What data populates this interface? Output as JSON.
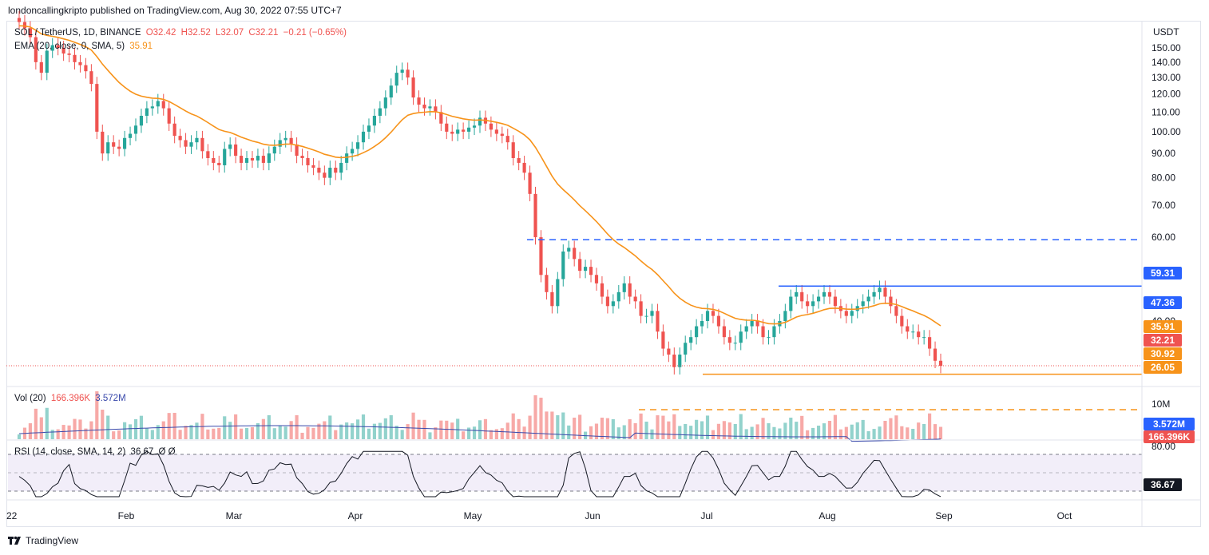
{
  "header": {
    "published": "londoncallingkripto published on TradingView.com, Aug 30, 2022 07:55 UTC+7"
  },
  "legend": {
    "symbol": "SOL / TetherUS, 1D, BINANCE",
    "open": "O32.42",
    "high": "H32.52",
    "low": "L32.07",
    "close": "C32.21",
    "change": "−0.21 (−0.65%)",
    "ema_label": "EMA (20, close, 0, SMA, 5)",
    "ema_value": "35.91",
    "vol_label": "Vol (20)",
    "vol_value": "166.396K",
    "vol_ma_value": "3.572M",
    "rsi_label": "RSI (14, close, SMA, 14, 2)",
    "rsi_value": "36.67",
    "rsi_extra": "Ø  Ø"
  },
  "price_axis": {
    "currency": "USDT",
    "ticks": [
      "150.00",
      "140.00",
      "130.00",
      "120.00",
      "110.00",
      "100.00",
      "90.00",
      "80.00",
      "70.00",
      "60.00",
      "50.00",
      "40.00"
    ]
  },
  "price_labels": [
    {
      "text": "59.31",
      "color": "#2962ff"
    },
    {
      "text": "47.36",
      "color": "#2962ff"
    },
    {
      "text": "35.91",
      "color": "#f7931a"
    },
    {
      "text": "32.21",
      "color": "#ef5350"
    },
    {
      "text": "30.92",
      "color": "#f7931a"
    },
    {
      "text": "26.05",
      "color": "#f7931a"
    }
  ],
  "volume_axis": {
    "tick": "10M",
    "labels": [
      {
        "text": "3.572M",
        "color": "#2962ff"
      },
      {
        "text": "166.396K",
        "color": "#ef5350"
      }
    ]
  },
  "rsi_axis": {
    "tick": "80.00",
    "label": "36.67"
  },
  "time_axis": [
    "22",
    "Feb",
    "Mar",
    "Apr",
    "May",
    "Jun",
    "Jul",
    "Aug",
    "Sep",
    "Oct"
  ],
  "footer": {
    "brand": "TradingView"
  },
  "colors": {
    "up": "#26a69a",
    "down": "#ef5350",
    "ema": "#f7931a",
    "resistance": "#2962ff",
    "support": "#f7931a",
    "rsi": "#7e57c2"
  },
  "chart_data": {
    "type": "candlestick",
    "ylim": [
      22,
      158
    ],
    "log_scale": true,
    "candles_close": [
      170,
      165,
      158,
      140,
      133,
      148,
      152,
      150,
      146,
      145,
      140,
      138,
      134,
      126,
      100,
      90,
      95,
      93,
      92,
      97,
      99,
      103,
      108,
      112,
      113,
      116,
      112,
      104,
      98,
      96,
      93,
      95,
      97,
      91,
      88,
      86,
      85,
      92,
      94,
      89,
      86,
      88,
      87,
      89,
      86,
      90,
      93,
      96,
      97,
      94,
      89,
      88,
      85,
      84,
      82,
      80,
      84,
      82,
      86,
      90,
      92,
      95,
      100,
      103,
      108,
      112,
      118,
      125,
      133,
      135,
      130,
      118,
      114,
      112,
      113,
      110,
      104,
      100,
      99,
      101,
      100,
      102,
      103,
      107,
      104,
      101,
      99,
      98,
      95,
      88,
      86,
      82,
      74,
      60,
      50,
      46,
      43,
      49,
      56,
      57,
      54,
      51,
      52,
      50,
      48,
      45,
      43,
      44,
      46,
      48,
      45,
      44,
      41,
      41,
      42,
      38,
      35,
      34,
      32,
      34,
      36,
      37,
      39,
      40,
      42,
      41,
      39,
      37,
      36,
      36,
      38,
      39,
      40,
      39,
      37,
      37,
      39,
      40,
      42,
      45,
      46,
      44,
      43,
      44,
      45,
      46,
      45,
      43,
      42,
      41,
      42,
      43,
      44,
      45,
      46,
      47,
      45,
      43,
      41,
      39,
      38,
      38,
      37,
      37,
      35,
      33,
      32.2
    ],
    "ema20_end": 35.91,
    "levels": [
      {
        "name": "resistance",
        "value": 59.31
      },
      {
        "name": "resistance",
        "value": 47.36
      },
      {
        "name": "support",
        "value": 30.92
      },
      {
        "name": "support",
        "value": 26.05
      }
    ]
  }
}
